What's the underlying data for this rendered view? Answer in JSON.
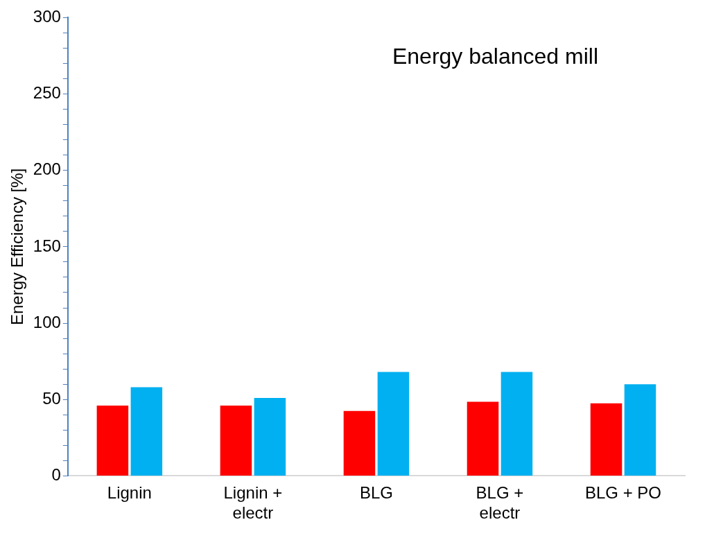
{
  "chart_data": {
    "type": "bar",
    "ylabel": "Energy Efficiency [%]",
    "annotations": [
      "Energy balanced mill"
    ],
    "categories": [
      "Lignin",
      "Lignin +\nelectr",
      "BLG",
      "BLG +\nelectr",
      "BLG + PO"
    ],
    "series": [
      {
        "color": "#ff0000",
        "values": [
          46,
          46,
          42.5,
          48.5,
          47.5
        ]
      },
      {
        "color": "#00b0f0",
        "values": [
          58,
          51,
          68,
          68,
          60
        ]
      }
    ],
    "ylim": [
      0,
      300
    ],
    "yticks": [
      0,
      {
        "value": 10,
        "label": null
      },
      {
        "value": 20,
        "label": null
      },
      {
        "value": 30,
        "label": null
      },
      {
        "value": 40,
        "label": null
      },
      50,
      {
        "value": 60,
        "label": null
      },
      {
        "value": 70,
        "label": null
      },
      {
        "value": 80,
        "label": null
      },
      {
        "value": 90,
        "label": null
      },
      100,
      {
        "value": 110,
        "label": null
      },
      {
        "value": 120,
        "label": null
      },
      {
        "value": 130,
        "label": null
      },
      {
        "value": 140,
        "label": null
      },
      150,
      {
        "value": 160,
        "label": null
      },
      {
        "value": 170,
        "label": null
      },
      {
        "value": 180,
        "label": null
      },
      {
        "value": 190,
        "label": null
      },
      200,
      {
        "value": 210,
        "label": null
      },
      {
        "value": 220,
        "label": null
      },
      {
        "value": 230,
        "label": null
      },
      {
        "value": 240,
        "label": null
      },
      250,
      {
        "value": 260,
        "label": null
      },
      {
        "value": 270,
        "label": null
      },
      {
        "value": 280,
        "label": null
      },
      {
        "value": 290,
        "label": null
      },
      300
    ],
    "grid": false,
    "legend": false
  }
}
